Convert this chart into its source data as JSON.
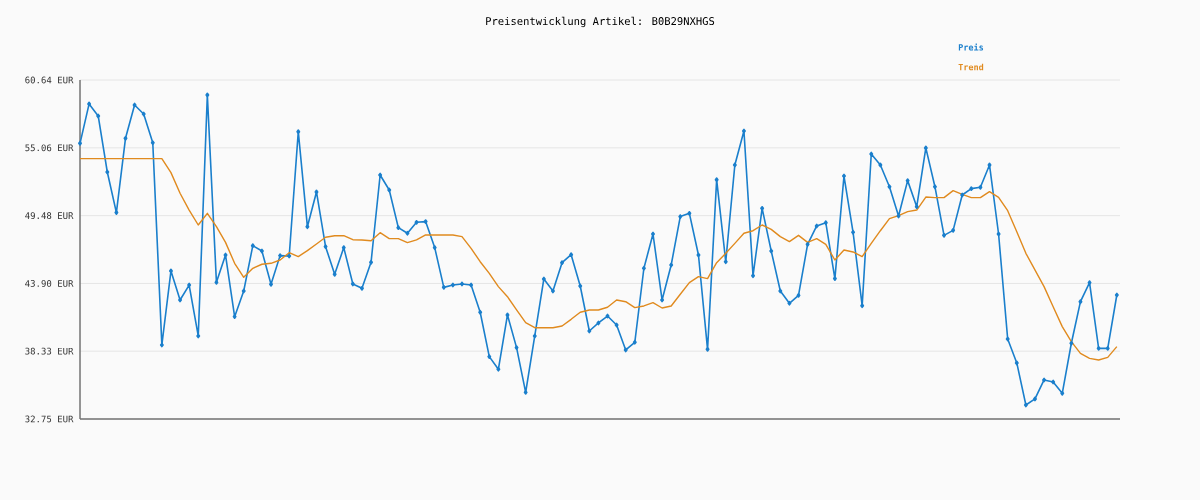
{
  "chart_data": {
    "type": "line",
    "title": "Preisentwicklung Artikel: B0B29NXHGS",
    "categories": [
      null,
      null,
      null,
      null,
      null,
      null,
      null,
      null,
      null,
      null,
      null,
      null,
      null,
      null,
      null,
      null,
      null,
      null,
      null,
      null,
      null,
      null,
      null,
      null,
      null,
      null,
      null,
      null,
      null,
      null,
      null,
      null,
      null,
      null,
      null,
      null,
      null,
      null,
      null,
      null,
      null,
      null,
      null,
      null,
      null,
      null,
      null,
      null,
      null,
      null,
      null,
      null,
      null,
      null,
      null,
      null,
      null,
      null,
      null,
      null,
      null,
      null,
      null,
      null,
      null,
      null,
      null,
      null,
      null,
      null,
      null,
      null,
      null,
      null,
      null,
      null,
      null,
      null,
      null,
      null,
      null,
      null,
      null,
      null,
      null,
      null,
      null,
      null,
      null,
      null,
      null,
      null,
      null,
      null,
      null,
      null,
      null,
      null,
      null,
      null,
      null,
      null,
      null,
      null,
      null,
      null,
      null,
      null,
      null,
      null,
      null,
      null,
      null,
      null,
      null
    ],
    "series": [
      {
        "name": "Preis",
        "color": "#1a7fcc",
        "marker": "diamond",
        "values": [
          55.43,
          58.67,
          57.68,
          53.07,
          49.73,
          55.84,
          58.58,
          57.84,
          55.48,
          38.84,
          44.93,
          42.54,
          43.77,
          39.58,
          59.41,
          43.99,
          46.24,
          41.17,
          43.28,
          47.01,
          46.57,
          43.83,
          46.19,
          46.16,
          56.39,
          48.57,
          51.43,
          46.93,
          44.65,
          46.85,
          43.86,
          43.5,
          45.64,
          52.82,
          51.59,
          48.49,
          48.03,
          48.93,
          48.99,
          46.85,
          43.58,
          43.77,
          43.86,
          43.77,
          41.53,
          37.88,
          36.84,
          41.31,
          38.62,
          34.94,
          39.58,
          44.27,
          43.28,
          45.61,
          46.27,
          43.69,
          39.99,
          40.65,
          41.22,
          40.48,
          38.43,
          39.06,
          45.15,
          47.97,
          42.54,
          45.42,
          49.4,
          49.67,
          46.24,
          38.48,
          52.44,
          45.69,
          53.65,
          56.44,
          44.54,
          50.08,
          46.57,
          43.28,
          42.27,
          42.92,
          47.12,
          48.63,
          48.9,
          44.3,
          52.74,
          48.11,
          42.07,
          54.55,
          53.65,
          51.86,
          49.45,
          52.36,
          50.22,
          55.05,
          51.86,
          47.86,
          48.27,
          51.18,
          51.7,
          51.81,
          53.65,
          47.97,
          39.33,
          37.36,
          33.9,
          34.4,
          35.96,
          35.79,
          34.86,
          38.98,
          42.4,
          43.97,
          38.56,
          38.56,
          42.95
        ]
      },
      {
        "name": "Trend",
        "color": "#e08a1e",
        "values": [
          54.17,
          54.17,
          54.17,
          54.17,
          54.17,
          54.17,
          54.17,
          54.17,
          54.17,
          54.17,
          53.02,
          51.32,
          49.94,
          48.71,
          49.67,
          48.57,
          47.28,
          45.56,
          44.41,
          45.15,
          45.48,
          45.56,
          45.83,
          46.43,
          46.11,
          46.6,
          47.15,
          47.7,
          47.83,
          47.83,
          47.5,
          47.48,
          47.42,
          48.08,
          47.59,
          47.59,
          47.26,
          47.48,
          47.89,
          47.89,
          47.89,
          47.89,
          47.75,
          46.79,
          45.69,
          44.73,
          43.64,
          42.81,
          41.72,
          40.68,
          40.26,
          40.26,
          40.26,
          40.4,
          40.95,
          41.53,
          41.72,
          41.72,
          41.94,
          42.54,
          42.4,
          41.91,
          42.05,
          42.32,
          41.88,
          42.05,
          43.01,
          43.97,
          44.46,
          44.3,
          45.61,
          46.38,
          47.2,
          48.03,
          48.24,
          48.71,
          48.35,
          47.75,
          47.34,
          47.86,
          47.28,
          47.59,
          47.12,
          45.83,
          46.65,
          46.49,
          46.11,
          47.2,
          48.24,
          49.23,
          49.48,
          49.81,
          49.94,
          51.01,
          50.96,
          50.96,
          51.54,
          51.23,
          50.96,
          50.96,
          51.45,
          50.99,
          49.89,
          48.16,
          46.38,
          45.01,
          43.64,
          41.99,
          40.35,
          39.11,
          38.15,
          37.74,
          37.6,
          37.82,
          38.7
        ]
      }
    ],
    "ylim": [
      32.75,
      60.64
    ],
    "yticks": [
      {
        "value": 32.75,
        "label": "32.75 EUR"
      },
      {
        "value": 38.33,
        "label": "38.33 EUR"
      },
      {
        "value": 43.9,
        "label": "43.90 EUR"
      },
      {
        "value": 49.48,
        "label": "49.48 EUR"
      },
      {
        "value": 55.06,
        "label": "55.06 EUR"
      },
      {
        "value": 60.64,
        "label": "60.64 EUR"
      }
    ],
    "grid": "y",
    "legend": "top right",
    "tick_labels": "y"
  }
}
